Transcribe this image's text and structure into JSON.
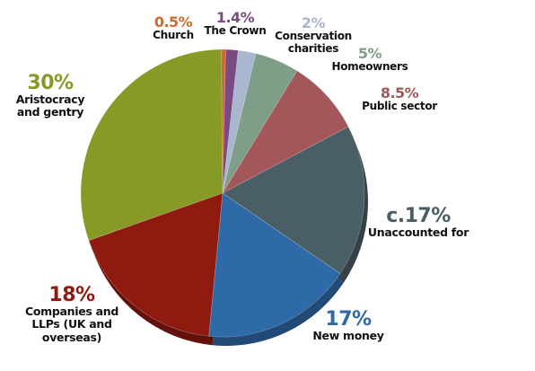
{
  "chart_data": {
    "type": "pie",
    "slices": [
      {
        "percent_label": "0.5%",
        "label": "Church",
        "value": 0.5,
        "color": "#d0692f"
      },
      {
        "percent_label": "1.4%",
        "label": "The Crown",
        "value": 1.4,
        "color": "#7b4a82"
      },
      {
        "percent_label": "2%",
        "label": "Conservation charities",
        "value": 2,
        "color": "#a9b6cf"
      },
      {
        "percent_label": "5%",
        "label": "Homeowners",
        "value": 5,
        "color": "#7f9e88"
      },
      {
        "percent_label": "8.5%",
        "label": "Public sector",
        "value": 8.5,
        "color": "#a3575a"
      },
      {
        "percent_label": "c.17%",
        "label": "Unaccounted for",
        "value": 17,
        "color": "#4a5e66"
      },
      {
        "percent_label": "17%",
        "label": "New money",
        "value": 17,
        "color": "#2f6aa8"
      },
      {
        "percent_label": "18%",
        "label": "Companies and LLPs (UK and overseas)",
        "value": 18,
        "color": "#8e1a10"
      },
      {
        "percent_label": "30%",
        "label": "Aristocracy and gentry",
        "value": 30,
        "color": "#879a26"
      }
    ],
    "label_colors": {
      "Church": "#d0692f",
      "The Crown": "#7b4a82",
      "Conservation charities": "#a9b6cf",
      "Homeowners": "#7f9e88",
      "Public sector": "#a3575a",
      "Unaccounted for": "#4a5e66",
      "New money": "#2f6aa8",
      "Companies and LLPs (UK and overseas)": "#8e1a10",
      "Aristocracy and gentry": "#879a26"
    }
  }
}
